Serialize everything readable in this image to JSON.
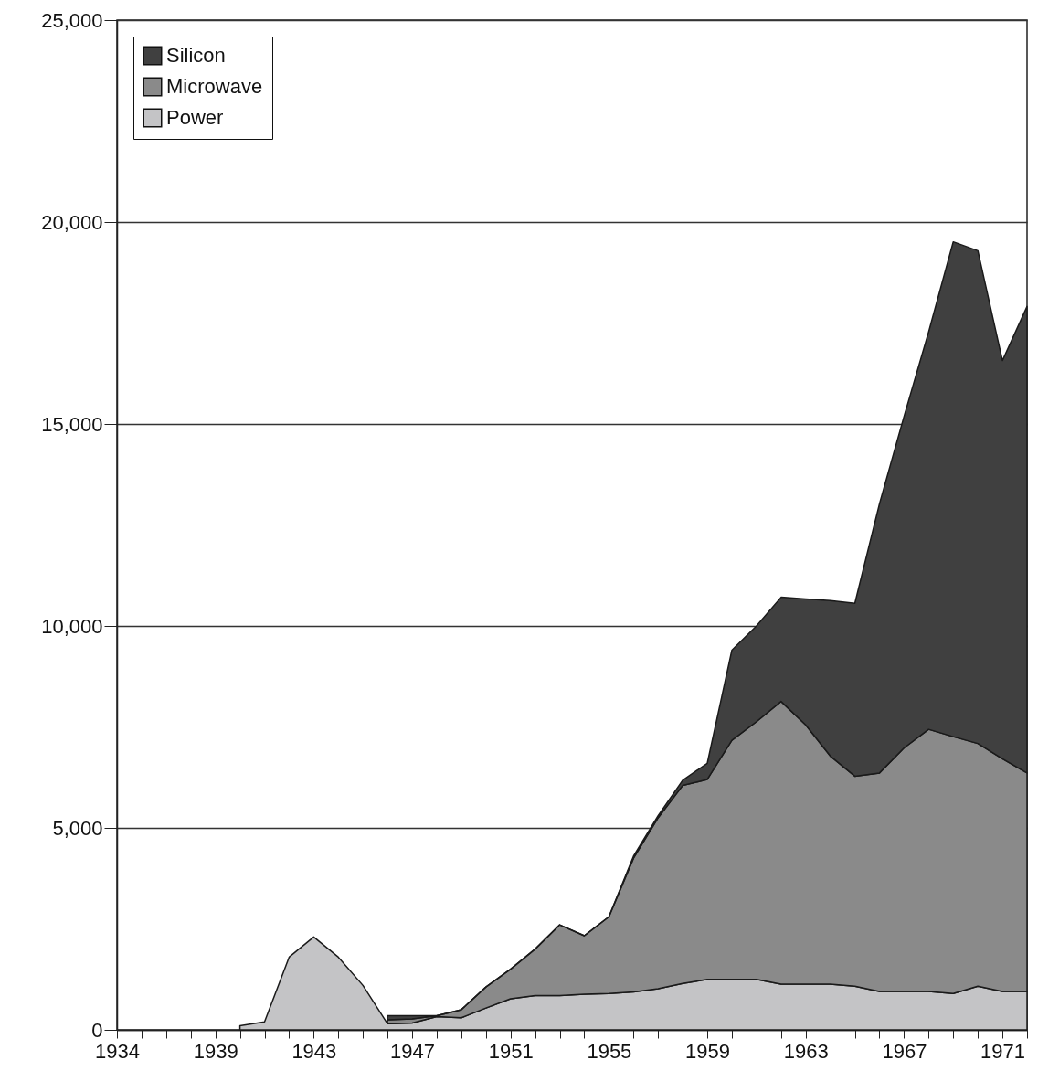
{
  "chart_data": {
    "type": "area",
    "stacked": true,
    "categories": [
      "1934",
      null,
      null,
      null,
      "1939",
      null,
      null,
      null,
      "1943",
      null,
      null,
      null,
      "1947",
      null,
      null,
      null,
      "1951",
      null,
      null,
      null,
      "1955",
      null,
      null,
      null,
      "1959",
      null,
      null,
      null,
      "1963",
      null,
      null,
      null,
      "1967",
      null,
      null,
      null,
      "1971",
      null
    ],
    "series": [
      {
        "name": "Power",
        "color": "#c4c4c6",
        "values": [
          null,
          null,
          null,
          null,
          null,
          100,
          200,
          1800,
          2300,
          1800,
          1100,
          150,
          170,
          330,
          300,
          540,
          770,
          850,
          850,
          880,
          900,
          940,
          1020,
          1150,
          1250,
          1250,
          1250,
          1130,
          1130,
          1130,
          1080,
          950,
          950,
          950,
          900,
          1080,
          950,
          950
        ]
      },
      {
        "name": "Microwave",
        "color": "#8a8a8a",
        "values": [
          null,
          null,
          null,
          null,
          null,
          null,
          null,
          null,
          null,
          null,
          null,
          100,
          100,
          20,
          200,
          520,
          730,
          1150,
          1750,
          1450,
          1900,
          3310,
          4230,
          4900,
          4950,
          5920,
          6380,
          7000,
          6420,
          5650,
          5200,
          5410,
          6030,
          6490,
          6360,
          6010,
          5760,
          5410
        ]
      },
      {
        "name": "Silicon",
        "color": "#404040",
        "values": [
          null,
          null,
          null,
          null,
          null,
          null,
          null,
          null,
          null,
          null,
          null,
          100,
          80,
          0,
          0,
          0,
          0,
          0,
          0,
          0,
          0,
          50,
          50,
          130,
          400,
          2230,
          2370,
          2580,
          3120,
          3850,
          4280,
          6660,
          8210,
          9840,
          12250,
          12200,
          9860,
          11550
        ]
      }
    ],
    "ylim": [
      0,
      25000
    ],
    "yticks": [
      {
        "value": 0,
        "label": "0"
      },
      {
        "value": 5000,
        "label": "5,000"
      },
      {
        "value": 10000,
        "label": "10,000"
      },
      {
        "value": 15000,
        "label": "15,000"
      },
      {
        "value": 20000,
        "label": "20,000"
      },
      {
        "value": 25000,
        "label": "25,000"
      }
    ],
    "grid": "y",
    "legend": "top left"
  }
}
